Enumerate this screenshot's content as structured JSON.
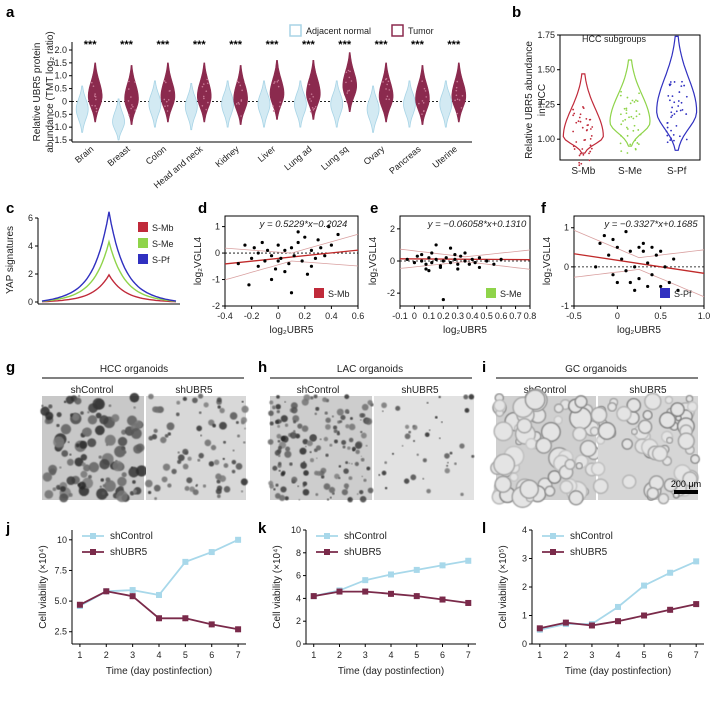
{
  "colors": {
    "normal": "#a8d4e6",
    "normal_fill": "#d3eaf3",
    "tumor": "#8b2a4e",
    "smb": "#c02a3a",
    "sme": "#8fd44a",
    "spf": "#3030c0",
    "line_control": "#a8d8ea",
    "line_ubr5": "#7a2a4a"
  },
  "panels": {
    "a": "a",
    "b": "b",
    "c": "c",
    "d": "d",
    "e": "e",
    "f": "f",
    "g": "g",
    "h": "h",
    "i": "i",
    "j": "j",
    "k": "k",
    "l": "l"
  },
  "chart_data": [
    {
      "id": "a",
      "type": "violin",
      "ylabel": "Relative UBR5 protein abundance (TMT log₂ ratio)",
      "ylabel_line1": "Relative UBR5 protein",
      "ylabel_line2": "abundance (TMT log₂ ratio)",
      "yticks": [
        "2.0",
        "1.5",
        "1.0",
        "0.5",
        "0",
        "-0.5",
        "-1.0",
        "-1.5"
      ],
      "ylim": [
        -1.5,
        2.0
      ],
      "legend": [
        "Adjacent normal",
        "Tumor"
      ],
      "categories": [
        "Brain",
        "Breast",
        "Colon",
        "Head and neck",
        "Kidney",
        "Liver",
        "Lung ad",
        "Lung sq",
        "Ovary",
        "Pancreas",
        "Uterine"
      ],
      "significance": "***",
      "normal_median": [
        -0.3,
        -0.8,
        -0.1,
        -0.2,
        -0.1,
        -0.1,
        -0.1,
        -0.1,
        -0.3,
        -0.1,
        -0.1
      ],
      "tumor_median": [
        0.2,
        0.1,
        0.2,
        0.2,
        0.1,
        0.3,
        0.3,
        0.6,
        0.2,
        0.1,
        0.2
      ]
    },
    {
      "id": "b",
      "type": "violin",
      "ylabel_line1": "Relative UBR5 abundance",
      "ylabel_line2": "in HCC",
      "title": "HCC subgroups",
      "yticks": [
        "1.75",
        "1.50",
        "1.25",
        "1.00"
      ],
      "ylim": [
        0.85,
        1.75
      ],
      "categories": [
        "S-Mb",
        "S-Me",
        "S-Pf"
      ],
      "medians": [
        1.02,
        1.12,
        1.2
      ]
    },
    {
      "id": "c",
      "type": "line",
      "ylabel": "YAP signatures",
      "yticks": [
        "6",
        "4",
        "2",
        "0"
      ],
      "ylim": [
        0,
        6
      ],
      "legend": [
        "S-Mb",
        "S-Me",
        "S-Pf"
      ],
      "peaks": [
        1.8,
        4.0,
        6.0
      ]
    },
    {
      "id": "d",
      "type": "scatter",
      "equation": "y = 0.5229*x−0.2024",
      "ylabel": "log₂VGLL4",
      "xlabel": "log₂UBR5",
      "xticks": [
        "-0.4",
        "-0.2",
        "0",
        "0.2",
        "0.4",
        "0.6"
      ],
      "yticks": [
        "1",
        "0",
        "-1",
        "-2"
      ],
      "xlim": [
        -0.4,
        0.6
      ],
      "ylim": [
        -2,
        1.4
      ],
      "legend": "S-Mb",
      "slope": 0.5229,
      "intercept": -0.2024,
      "points": [
        [
          -0.25,
          0.3
        ],
        [
          -0.2,
          -0.2
        ],
        [
          -0.18,
          0.2
        ],
        [
          -0.15,
          -0.5
        ],
        [
          -0.12,
          0.4
        ],
        [
          -0.1,
          -0.3
        ],
        [
          -0.08,
          0.1
        ],
        [
          -0.05,
          -0.1
        ],
        [
          -0.02,
          -0.6
        ],
        [
          0.0,
          0.3
        ],
        [
          0.02,
          -0.2
        ],
        [
          0.05,
          0.1
        ],
        [
          0.08,
          -0.4
        ],
        [
          0.1,
          0.2
        ],
        [
          0.12,
          -0.1
        ],
        [
          0.15,
          0.4
        ],
        [
          0.18,
          -0.3
        ],
        [
          0.2,
          0.6
        ],
        [
          0.22,
          -0.8
        ],
        [
          0.25,
          0.1
        ],
        [
          0.28,
          -0.2
        ],
        [
          0.3,
          0.5
        ],
        [
          0.35,
          -0.1
        ],
        [
          0.4,
          0.3
        ],
        [
          0.45,
          0.7
        ],
        [
          -0.3,
          -0.4
        ],
        [
          -0.22,
          -1.2
        ],
        [
          -0.05,
          -1.0
        ],
        [
          0.1,
          -1.5
        ],
        [
          0.15,
          0.8
        ],
        [
          0.05,
          -0.7
        ],
        [
          -0.15,
          0.0
        ],
        [
          0.0,
          -0.3
        ],
        [
          0.25,
          -0.5
        ],
        [
          0.32,
          0.2
        ],
        [
          0.38,
          1.0
        ]
      ]
    },
    {
      "id": "e",
      "type": "scatter",
      "equation": "y = −0.06058*x+0.1310",
      "ylabel": "log₂VGLL4",
      "xlabel": "log₂UBR5",
      "xticks": [
        "-0.1",
        "0",
        "0.1",
        "0.2",
        "0.3",
        "0.4",
        "0.5",
        "0.6",
        "0.7",
        "0.8"
      ],
      "yticks": [
        "2",
        "0",
        "-2"
      ],
      "xlim": [
        -0.1,
        0.8
      ],
      "ylim": [
        -2.8,
        2.8
      ],
      "legend": "S-Me",
      "slope": -0.06058,
      "intercept": 0.131,
      "points": [
        [
          -0.05,
          0.1
        ],
        [
          0.0,
          -0.1
        ],
        [
          0.02,
          0.3
        ],
        [
          0.05,
          0.0
        ],
        [
          0.08,
          -0.2
        ],
        [
          0.1,
          0.2
        ],
        [
          0.12,
          -0.1
        ],
        [
          0.15,
          0.1
        ],
        [
          0.18,
          -0.3
        ],
        [
          0.2,
          0.0
        ],
        [
          0.22,
          0.2
        ],
        [
          0.25,
          -0.1
        ],
        [
          0.28,
          0.1
        ],
        [
          0.3,
          -0.2
        ],
        [
          0.32,
          0.3
        ],
        [
          0.35,
          0.0
        ],
        [
          0.38,
          -0.2
        ],
        [
          0.4,
          0.1
        ],
        [
          0.42,
          -0.1
        ],
        [
          0.45,
          0.2
        ],
        [
          0.5,
          0.0
        ],
        [
          0.55,
          -0.2
        ],
        [
          0.6,
          0.1
        ],
        [
          0.15,
          1.0
        ],
        [
          0.25,
          0.8
        ],
        [
          0.1,
          -0.6
        ],
        [
          0.3,
          -0.5
        ],
        [
          0.2,
          -2.4
        ],
        [
          0.05,
          0.4
        ],
        [
          0.12,
          0.5
        ],
        [
          0.18,
          -0.4
        ],
        [
          0.35,
          0.5
        ],
        [
          0.45,
          -0.4
        ],
        [
          0.08,
          -0.5
        ],
        [
          0.28,
          0.4
        ]
      ]
    },
    {
      "id": "f",
      "type": "scatter",
      "equation": "y = −0.3327*x+0.1685",
      "ylabel": "log₂VGLL4",
      "xlabel": "log₂UBR5",
      "xticks": [
        "-0.5",
        "0",
        "0.5",
        "1.0"
      ],
      "yticks": [
        "1",
        "0",
        "-1"
      ],
      "xlim": [
        -0.5,
        1.0
      ],
      "ylim": [
        -1.0,
        1.3
      ],
      "legend": "S-Pf",
      "slope": -0.3327,
      "intercept": 0.1685,
      "points": [
        [
          -0.25,
          0.0
        ],
        [
          -0.2,
          0.6
        ],
        [
          -0.15,
          0.8
        ],
        [
          -0.1,
          0.3
        ],
        [
          -0.05,
          -0.2
        ],
        [
          0.0,
          0.5
        ],
        [
          0.05,
          0.2
        ],
        [
          0.1,
          -0.1
        ],
        [
          0.15,
          0.4
        ],
        [
          0.2,
          0.0
        ],
        [
          0.25,
          -0.3
        ],
        [
          0.3,
          0.6
        ],
        [
          0.35,
          0.1
        ],
        [
          0.4,
          -0.2
        ],
        [
          0.45,
          0.3
        ],
        [
          0.5,
          -0.5
        ],
        [
          0.55,
          0.0
        ],
        [
          0.6,
          -0.4
        ],
        [
          0.65,
          0.2
        ],
        [
          0.7,
          -0.6
        ],
        [
          0.1,
          0.9
        ],
        [
          0.2,
          -0.6
        ],
        [
          0.3,
          0.4
        ],
        [
          0.0,
          -0.4
        ],
        [
          -0.05,
          0.7
        ],
        [
          0.25,
          0.5
        ],
        [
          0.4,
          0.5
        ],
        [
          0.15,
          -0.4
        ],
        [
          0.5,
          0.4
        ],
        [
          0.35,
          -0.5
        ]
      ]
    },
    {
      "id": "j",
      "type": "line",
      "ylabel": "Cell viability (×10⁴)",
      "xlabel": "Time (day postinfection)",
      "x": [
        1,
        2,
        3,
        4,
        5,
        6,
        7
      ],
      "xticks": [
        "1",
        "2",
        "3",
        "4",
        "5",
        "6",
        "7"
      ],
      "yticks": [
        "10",
        "7.5",
        "5.0",
        "2.5"
      ],
      "ylim": [
        1.5,
        10.8
      ],
      "series": [
        {
          "name": "shControl",
          "values": [
            4.6,
            5.8,
            5.9,
            5.5,
            8.2,
            9.0,
            10.0
          ]
        },
        {
          "name": "shUBR5",
          "values": [
            4.7,
            5.8,
            5.4,
            3.6,
            3.6,
            3.1,
            2.7
          ]
        }
      ]
    },
    {
      "id": "k",
      "type": "line",
      "ylabel": "Cell viability (×10⁴)",
      "xlabel": "Time (day postinfection)",
      "x": [
        1,
        2,
        3,
        4,
        5,
        6,
        7
      ],
      "xticks": [
        "1",
        "2",
        "3",
        "4",
        "5",
        "6",
        "7"
      ],
      "yticks": [
        "10",
        "8",
        "6",
        "4",
        "2",
        "0"
      ],
      "ylim": [
        0,
        10
      ],
      "series": [
        {
          "name": "shControl",
          "values": [
            4.2,
            4.7,
            5.6,
            6.1,
            6.5,
            6.9,
            7.3
          ]
        },
        {
          "name": "shUBR5",
          "values": [
            4.2,
            4.6,
            4.6,
            4.4,
            4.2,
            3.9,
            3.6
          ]
        }
      ]
    },
    {
      "id": "l",
      "type": "line",
      "ylabel": "Cell viability (×10⁵)",
      "xlabel": "Time (day postinfection)",
      "x": [
        1,
        2,
        3,
        4,
        5,
        6,
        7
      ],
      "xticks": [
        "1",
        "2",
        "3",
        "4",
        "5",
        "6",
        "7"
      ],
      "yticks": [
        "4",
        "3",
        "2",
        "1",
        "0"
      ],
      "ylim": [
        0,
        4
      ],
      "series": [
        {
          "name": "shControl",
          "values": [
            0.5,
            0.7,
            0.7,
            1.3,
            2.05,
            2.5,
            2.9
          ]
        },
        {
          "name": "shUBR5",
          "values": [
            0.55,
            0.75,
            0.65,
            0.8,
            1.0,
            1.2,
            1.4
          ]
        }
      ]
    }
  ],
  "organoids": {
    "g": {
      "title": "HCC organoids",
      "left": "shControl",
      "right": "shUBR5"
    },
    "h": {
      "title": "LAC organoids",
      "left": "shControl",
      "right": "shUBR5"
    },
    "i": {
      "title": "GC organoids",
      "left": "shControl",
      "right": "shUBR5"
    },
    "scalebar": "200 μm"
  }
}
